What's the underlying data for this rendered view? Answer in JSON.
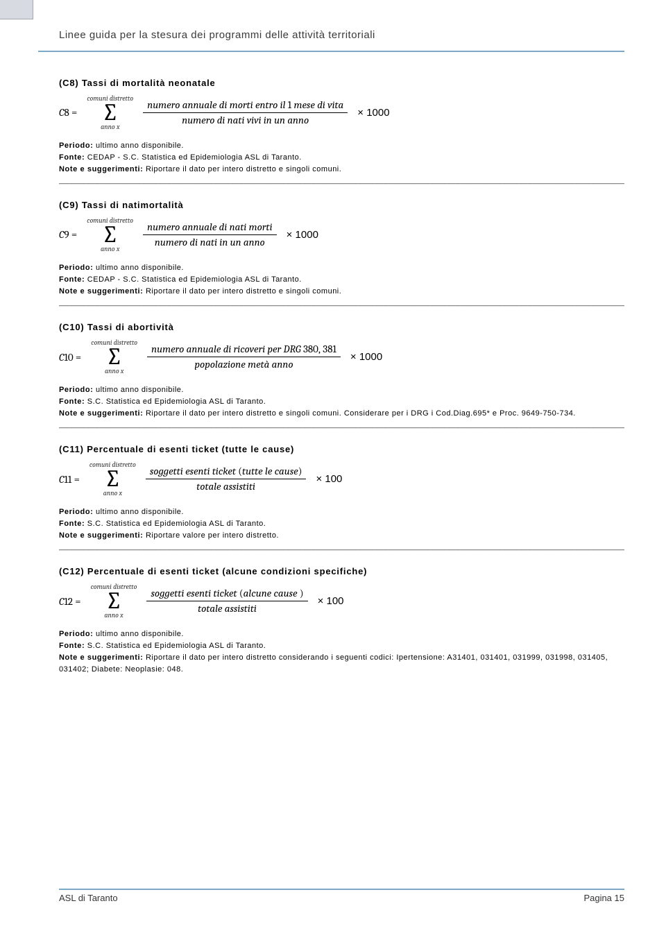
{
  "header": {
    "title": "Linee guida per la stesura dei programmi delle attività territoriali",
    "rule_color": "#7da9c9"
  },
  "sum": {
    "top": "comuni distretto",
    "bottom": "anno x"
  },
  "sections": [
    {
      "id": "c8",
      "title": "(C8) Tassi di mortalità neonatale",
      "lhs": "C8 =",
      "num": "numero annuale di morti entro il 1 mese di vita",
      "den": "numero di nati vivi in un anno",
      "factor": "× 1000",
      "periodo": "ultimo anno disponibile.",
      "fonte": "CEDAP - S.C. Statistica ed Epidemiologia ASL di Taranto.",
      "note": "Riportare il dato per intero distretto e singoli comuni."
    },
    {
      "id": "c9",
      "title": "(C9) Tassi di natimortalità",
      "lhs": "C9 =",
      "num": "numero annuale di nati morti",
      "den": "numero di nati in un anno",
      "factor": "× 1000",
      "periodo": "ultimo anno disponibile.",
      "fonte": "CEDAP - S.C. Statistica ed Epidemiologia ASL di Taranto.",
      "note": "Riportare il dato per intero distretto e singoli comuni."
    },
    {
      "id": "c10",
      "title": "(C10) Tassi di abortività",
      "lhs": "C10 =",
      "num": "numero annuale di ricoveri per DRG 380, 381",
      "den": "popolazione metà anno",
      "factor": "× 1000",
      "periodo": "ultimo anno disponibile.",
      "fonte": "S.C. Statistica ed Epidemiologia ASL di Taranto.",
      "note": "Riportare il dato per intero distretto e singoli comuni. Considerare per i DRG i Cod.Diag.695* e Proc. 9649-750-734."
    },
    {
      "id": "c11",
      "title": "(C11) Percentuale di esenti ticket (tutte le cause)",
      "lhs": "C11 =",
      "num": "soggetti esenti ticket (tutte le cause)",
      "den": "totale assistiti",
      "factor": "× 100",
      "periodo": "ultimo anno disponibile.",
      "fonte": "S.C. Statistica ed Epidemiologia ASL di Taranto.",
      "note": "Riportare valore per intero distretto."
    },
    {
      "id": "c12",
      "title": "(C12) Percentuale di esenti ticket (alcune condizioni specifiche)",
      "lhs": "C12 =",
      "num": "soggetti esenti ticket (alcune cause )",
      "den": "totale assistiti",
      "factor": "× 100",
      "periodo": "ultimo anno disponibile.",
      "fonte": "S.C. Statistica ed Epidemiologia ASL di Taranto.",
      "note": "Riportare il dato per intero distretto considerando i seguenti codici: Ipertensione: A31401, 031401, 031999, 031998, 031405, 031402; Diabete: Neoplasie: 048."
    }
  ],
  "labels": {
    "periodo": "Periodo:",
    "fonte": "Fonte:",
    "note": "Note e suggerimenti:"
  },
  "footer": {
    "left": "ASL di Taranto",
    "right": "Pagina 15"
  }
}
